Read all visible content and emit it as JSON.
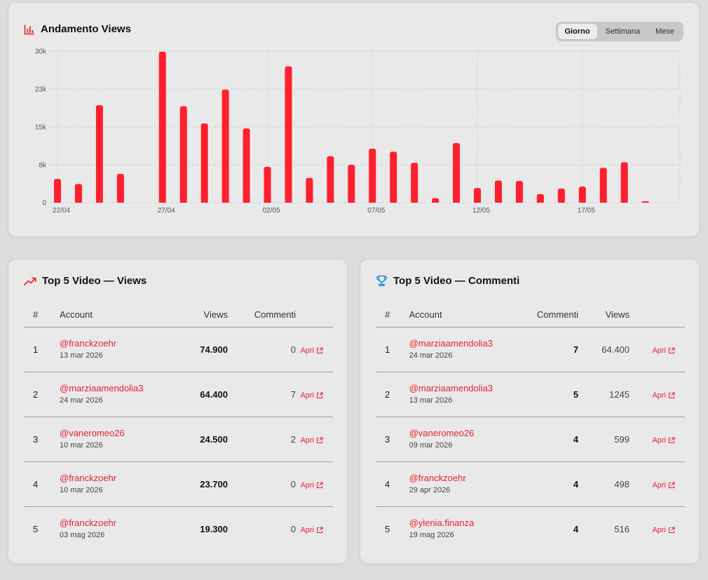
{
  "colors": {
    "accent": "#ff1f2d",
    "grid": "#cfcfcf"
  },
  "chart_card": {
    "title": "Andamento Views",
    "icon": "bar-chart-icon",
    "tabs": [
      {
        "label": "Giorno",
        "active": true
      },
      {
        "label": "Settimana",
        "active": false
      },
      {
        "label": "Mese",
        "active": false
      }
    ]
  },
  "chart_data": {
    "type": "bar",
    "title": "Andamento Views",
    "ylim": [
      0,
      30000
    ],
    "y_ticks": [
      "30k",
      "23k",
      "15k",
      "8k",
      "0"
    ],
    "x_tick_labels": [
      "22/04",
      "27/04",
      "02/05",
      "07/05",
      "12/05",
      "17/05"
    ],
    "x_tick_positions": [
      0,
      5,
      10,
      15,
      20,
      25
    ],
    "categories": [
      "22/04",
      "23/04",
      "24/04",
      "25/04",
      "26/04",
      "27/04",
      "28/04",
      "29/04",
      "30/04",
      "01/05",
      "02/05",
      "03/05",
      "04/05",
      "05/05",
      "06/05",
      "07/05",
      "08/05",
      "09/05",
      "10/05",
      "11/05",
      "12/05",
      "13/05",
      "14/05",
      "15/05",
      "16/05",
      "17/05",
      "18/05",
      "19/05",
      "20/05"
    ],
    "values": [
      4700,
      3700,
      19300,
      5700,
      0,
      29900,
      19100,
      15700,
      22400,
      14700,
      7100,
      27000,
      4900,
      9200,
      7500,
      10700,
      10100,
      7900,
      900,
      11800,
      2900,
      4400,
      4300,
      1700,
      2800,
      3200,
      6900,
      8000,
      200
    ],
    "grid": true
  },
  "views_table": {
    "title": "Top 5 Video — Views",
    "icon": "trending-up-icon",
    "headers": [
      "#",
      "Account",
      "Views",
      "Commenti"
    ],
    "rows": [
      {
        "rank": "1",
        "account": "@franckzoehr",
        "date": "13 mar 2026",
        "views": "74.900",
        "comments": "0",
        "link": "Apri"
      },
      {
        "rank": "2",
        "account": "@marziaamendolia3",
        "date": "24 mar 2026",
        "views": "64.400",
        "comments": "7",
        "link": "Apri"
      },
      {
        "rank": "3",
        "account": "@vaneromeo26",
        "date": "10 mar 2026",
        "views": "24.500",
        "comments": "2",
        "link": "Apri"
      },
      {
        "rank": "4",
        "account": "@franckzoehr",
        "date": "10 mar 2026",
        "views": "23.700",
        "comments": "0",
        "link": "Apri"
      },
      {
        "rank": "5",
        "account": "@franckzoehr",
        "date": "03 mag 2026",
        "views": "19.300",
        "comments": "0",
        "link": "Apri"
      }
    ]
  },
  "comments_table": {
    "title": "Top 5 Video — Commenti",
    "icon": "trophy-icon",
    "headers": [
      "#",
      "Account",
      "Commenti",
      "Views"
    ],
    "rows": [
      {
        "rank": "1",
        "account": "@marziaamendolia3",
        "date": "24 mar 2026",
        "comments": "7",
        "views": "64.400",
        "link": "Apri"
      },
      {
        "rank": "2",
        "account": "@marziaamendolia3",
        "date": "13 mar 2026",
        "comments": "5",
        "views": "1245",
        "link": "Apri"
      },
      {
        "rank": "3",
        "account": "@vaneromeo26",
        "date": "09 mar 2026",
        "comments": "4",
        "views": "599",
        "link": "Apri"
      },
      {
        "rank": "4",
        "account": "@franckzoehr",
        "date": "29 apr 2026",
        "comments": "4",
        "views": "498",
        "link": "Apri"
      },
      {
        "rank": "5",
        "account": "@ylenia.finanza",
        "date": "19 mag 2026",
        "comments": "4",
        "views": "516",
        "link": "Apri"
      }
    ]
  }
}
